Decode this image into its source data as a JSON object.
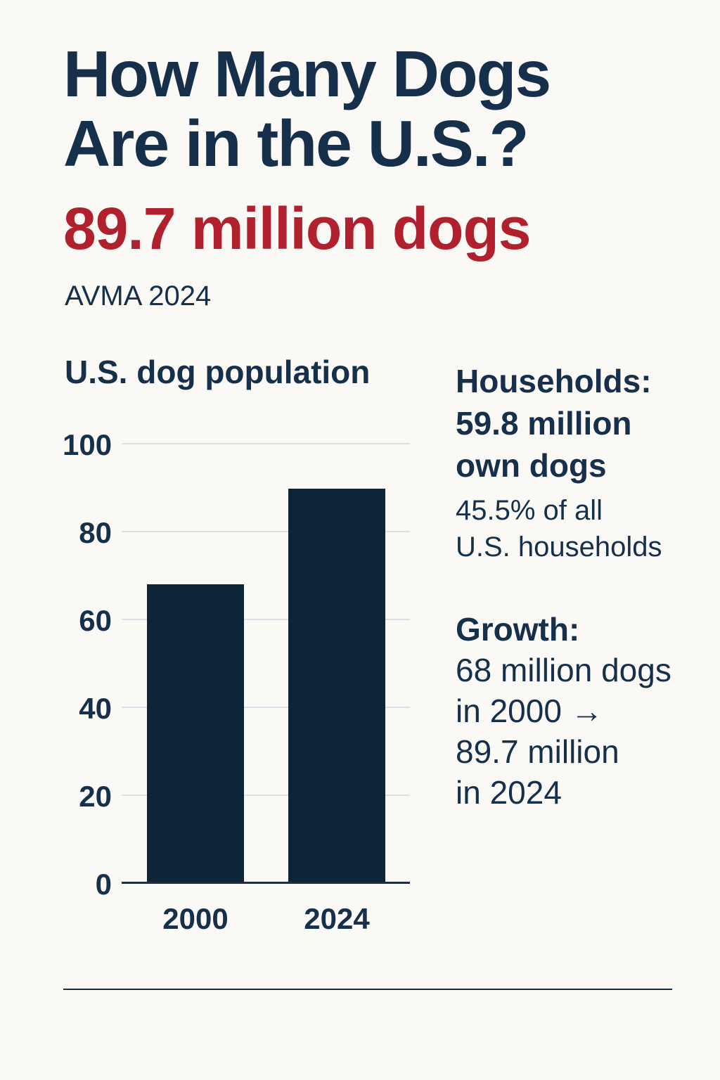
{
  "page": {
    "title_line1": "How Many Dogs",
    "title_line2": "Are in the U.S.?",
    "headline_stat": "89.7 million dogs",
    "source": "AVMA 2024",
    "colors": {
      "navy_text": "#16304B",
      "stat_red": "#B0202D",
      "bar_navy": "#0D2539",
      "gridline": "#D8E1E8",
      "axis": "#1F2D3D",
      "background": "#FAF9F6"
    }
  },
  "chart_data": {
    "type": "bar",
    "title": "U.S. dog population",
    "categories": [
      "2000",
      "2024"
    ],
    "values": [
      68,
      89.7
    ],
    "xlabel": "",
    "ylabel": "",
    "ylim": [
      0,
      100
    ],
    "yticks": [
      100,
      80,
      60,
      40,
      20,
      0
    ],
    "grid": true,
    "legend": "none",
    "bar_color": "#0D2539"
  },
  "panels": {
    "households": {
      "heading": "Households:",
      "line2": "59.8 million",
      "line3": "own dogs",
      "sub1": "45.5% of all",
      "sub2": "U.S. households"
    },
    "growth": {
      "heading": "Growth:",
      "line1": "68 million dogs",
      "line2": "in 2000 →",
      "line3": "89.7 million",
      "line4": "in 2024"
    }
  }
}
